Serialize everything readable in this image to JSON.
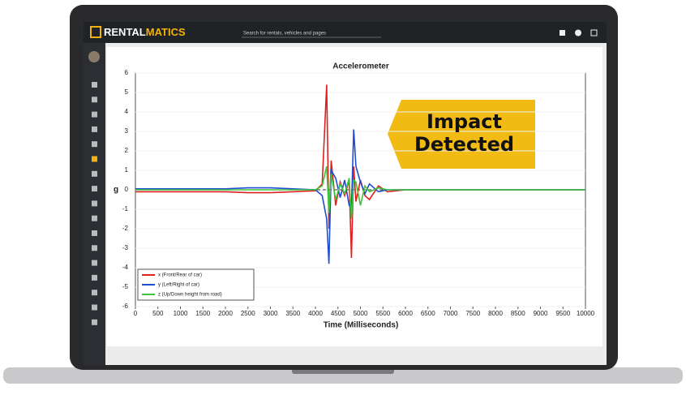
{
  "header": {
    "brand_a": "RENTAL",
    "brand_b": "MATICS",
    "search": "Search for rentals, vehicles and pages"
  },
  "annotation": "Impact Detected",
  "chart_data": {
    "type": "line",
    "title": "Accelerometer",
    "x_label": "Time (Milliseconds)",
    "y_label": "g",
    "x": [
      0,
      500,
      1000,
      1500,
      2000,
      2500,
      3000,
      3500,
      4000,
      4150,
      4250,
      4300,
      4350,
      4450,
      4550,
      4650,
      4750,
      4800,
      4850,
      4900,
      5000,
      5100,
      5200,
      5400,
      5600,
      6000,
      7000,
      8000,
      9000,
      10000
    ],
    "series": [
      {
        "name": "x (Front/Rear of car)",
        "color": "#e02020",
        "values": [
          -0.1,
          -0.1,
          -0.1,
          -0.1,
          -0.1,
          -0.15,
          -0.15,
          -0.1,
          -0.05,
          0.3,
          5.4,
          -2.0,
          1.5,
          -0.8,
          0.4,
          -0.3,
          0.5,
          -3.5,
          1.2,
          -0.6,
          0.5,
          -0.3,
          -0.5,
          0.2,
          -0.1,
          0,
          0,
          0,
          0,
          0
        ]
      },
      {
        "name": "y (Left/Right of car)",
        "color": "#1f4fd0",
        "values": [
          0.05,
          0.05,
          0.05,
          0.05,
          0.05,
          0.1,
          0.1,
          0.05,
          0,
          -0.3,
          -1.5,
          -3.8,
          1.0,
          0.6,
          -0.4,
          0.5,
          -0.8,
          -1.0,
          3.1,
          1.2,
          0.4,
          -0.2,
          0.3,
          -0.1,
          0,
          0,
          0,
          0,
          0,
          0
        ]
      },
      {
        "name": "z (Up/Down height from road)",
        "color": "#3cc43c",
        "values": [
          0,
          0,
          0,
          0,
          0,
          0,
          0,
          0,
          0,
          0.2,
          1.2,
          -1.2,
          0.8,
          -0.5,
          0.3,
          -0.2,
          0.6,
          -1.5,
          0.5,
          0.4,
          -0.8,
          0.2,
          -0.1,
          0.1,
          0,
          0,
          0,
          0,
          0,
          0
        ]
      }
    ],
    "xlim": [
      0,
      10000
    ],
    "xticks": [
      0,
      500,
      1000,
      1500,
      2000,
      2500,
      3000,
      3500,
      4000,
      4500,
      5000,
      5500,
      6000,
      6500,
      7000,
      7500,
      8000,
      8500,
      9000,
      9500,
      10000
    ],
    "ylim": [
      -6,
      6
    ],
    "yticks": [
      -6,
      -5,
      -4,
      -3,
      -2,
      -1,
      0,
      1,
      2,
      3,
      4,
      5,
      6
    ],
    "legend": "lower left"
  }
}
